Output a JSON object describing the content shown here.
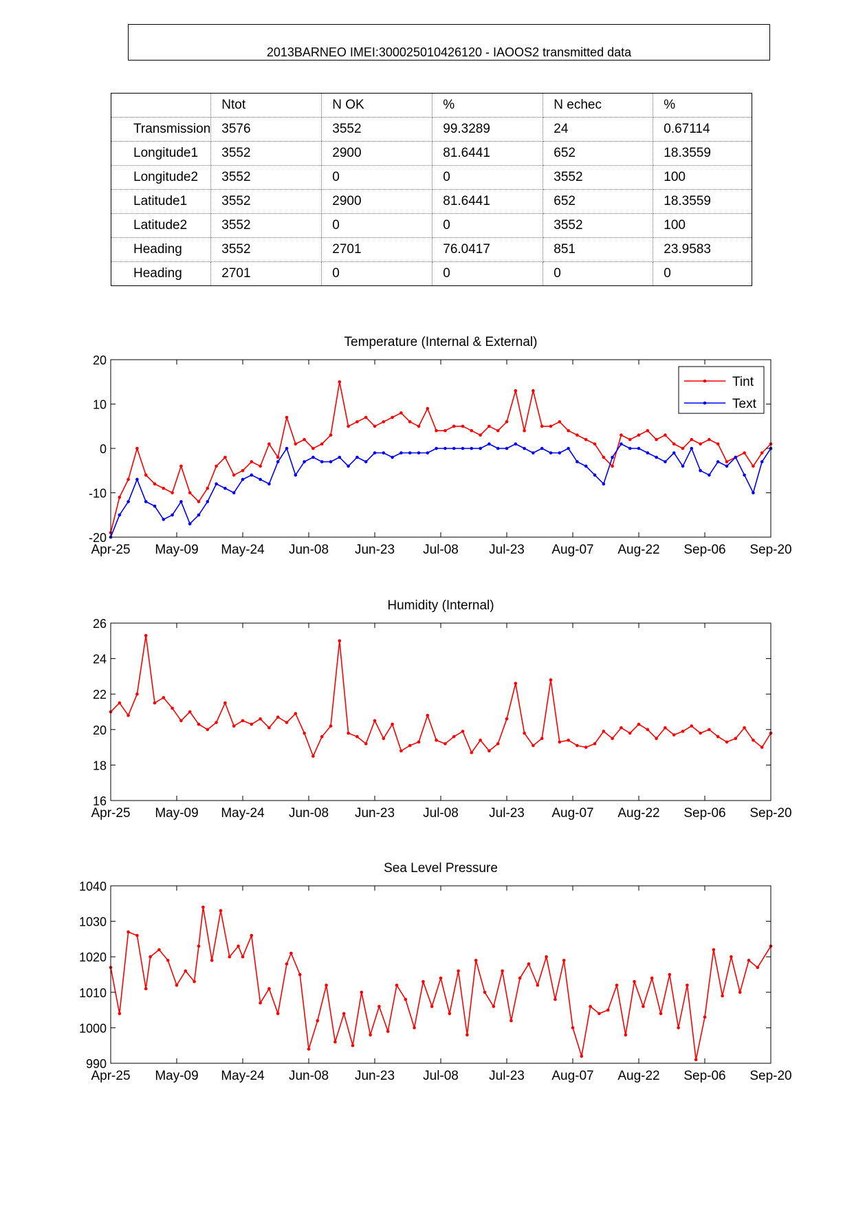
{
  "page_title": "2013BARNEO  IMEI:300025010426120  - IAOOS2 transmitted data",
  "table": {
    "headers": [
      "",
      "Ntot",
      "N OK",
      "%",
      "N echec",
      "%"
    ],
    "rows": [
      [
        "Transmission",
        "3576",
        "3552",
        "99.3289",
        "24",
        "0.67114"
      ],
      [
        "Longitude1",
        "3552",
        "2900",
        "81.6441",
        "652",
        "18.3559"
      ],
      [
        "Longitude2",
        "3552",
        "0",
        "0",
        "3552",
        "100"
      ],
      [
        "Latitude1",
        "3552",
        "2900",
        "81.6441",
        "652",
        "18.3559"
      ],
      [
        "Latitude2",
        "3552",
        "0",
        "0",
        "3552",
        "100"
      ],
      [
        "Heading",
        "3552",
        "2701",
        "76.0417",
        "851",
        "23.9583"
      ],
      [
        "Heading",
        "2701",
        "0",
        "0",
        "0",
        "0"
      ]
    ]
  },
  "colors": {
    "tint": "#ff0000",
    "text": "#0000ff",
    "axis": "#000000"
  },
  "chart_data": [
    {
      "type": "line",
      "title": "Temperature (Internal & External)",
      "xlabel": "",
      "ylabel": "",
      "x_tick_labels": [
        "Apr-25",
        "May-09",
        "May-24",
        "Jun-08",
        "Jun-23",
        "Jul-08",
        "Jul-23",
        "Aug-07",
        "Aug-22",
        "Sep-06",
        "Sep-20"
      ],
      "x_tick_days": [
        0,
        15,
        30,
        45,
        60,
        75,
        90,
        105,
        120,
        135,
        150
      ],
      "xlim": [
        0,
        150
      ],
      "ylim": [
        -20,
        20
      ],
      "y_ticks": [
        -20,
        -10,
        0,
        10,
        20
      ],
      "legend": {
        "position": "top-right",
        "entries": [
          "Tint",
          "Text"
        ]
      },
      "series": [
        {
          "name": "Tint",
          "color": "#ff0000",
          "x": [
            0,
            2,
            4,
            6,
            8,
            10,
            12,
            14,
            16,
            18,
            20,
            22,
            24,
            26,
            28,
            30,
            32,
            34,
            36,
            38,
            40,
            42,
            44,
            46,
            48,
            50,
            52,
            54,
            56,
            58,
            60,
            62,
            64,
            66,
            68,
            70,
            72,
            74,
            76,
            78,
            80,
            82,
            84,
            86,
            88,
            90,
            92,
            94,
            96,
            98,
            100,
            102,
            104,
            106,
            108,
            110,
            112,
            114,
            116,
            118,
            120,
            122,
            124,
            126,
            128,
            130,
            132,
            134,
            136,
            138,
            140,
            142,
            144,
            146,
            148,
            150
          ],
          "y": [
            -19,
            -11,
            -7,
            0,
            -6,
            -8,
            -9,
            -10,
            -4,
            -10,
            -12,
            -9,
            -4,
            -2,
            -6,
            -5,
            -3,
            -4,
            1,
            -2,
            7,
            1,
            2,
            0,
            1,
            3,
            15,
            5,
            6,
            7,
            5,
            6,
            7,
            8,
            6,
            5,
            9,
            4,
            4,
            5,
            5,
            4,
            3,
            5,
            4,
            6,
            13,
            4,
            13,
            5,
            5,
            6,
            4,
            3,
            2,
            1,
            -2,
            -4,
            3,
            2,
            3,
            4,
            2,
            3,
            1,
            0,
            2,
            1,
            2,
            1,
            -3,
            -2,
            -1,
            -4,
            -1,
            1
          ]
        },
        {
          "name": "Text",
          "color": "#0000ff",
          "x": [
            0,
            2,
            4,
            6,
            8,
            10,
            12,
            14,
            16,
            18,
            20,
            22,
            24,
            26,
            28,
            30,
            32,
            34,
            36,
            38,
            40,
            42,
            44,
            46,
            48,
            50,
            52,
            54,
            56,
            58,
            60,
            62,
            64,
            66,
            68,
            70,
            72,
            74,
            76,
            78,
            80,
            82,
            84,
            86,
            88,
            90,
            92,
            94,
            96,
            98,
            100,
            102,
            104,
            106,
            108,
            110,
            112,
            114,
            116,
            118,
            120,
            122,
            124,
            126,
            128,
            130,
            132,
            134,
            136,
            138,
            140,
            142,
            144,
            146,
            148,
            150
          ],
          "y": [
            -20,
            -15,
            -12,
            -7,
            -12,
            -13,
            -16,
            -15,
            -12,
            -17,
            -15,
            -12,
            -8,
            -9,
            -10,
            -7,
            -6,
            -7,
            -8,
            -3,
            0,
            -6,
            -3,
            -2,
            -3,
            -3,
            -2,
            -4,
            -2,
            -3,
            -1,
            -1,
            -2,
            -1,
            -1,
            -1,
            -1,
            0,
            0,
            0,
            0,
            0,
            0,
            1,
            0,
            0,
            1,
            0,
            -1,
            0,
            -1,
            -1,
            0,
            -3,
            -4,
            -6,
            -8,
            -2,
            1,
            0,
            0,
            -1,
            -2,
            -3,
            -1,
            -4,
            0,
            -5,
            -6,
            -3,
            -4,
            -2,
            -6,
            -10,
            -3,
            0
          ]
        }
      ]
    },
    {
      "type": "line",
      "title": "Humidity (Internal)",
      "xlabel": "",
      "ylabel": "",
      "x_tick_labels": [
        "Apr-25",
        "May-09",
        "May-24",
        "Jun-08",
        "Jun-23",
        "Jul-08",
        "Jul-23",
        "Aug-07",
        "Aug-22",
        "Sep-06",
        "Sep-20"
      ],
      "x_tick_days": [
        0,
        15,
        30,
        45,
        60,
        75,
        90,
        105,
        120,
        135,
        150
      ],
      "xlim": [
        0,
        150
      ],
      "ylim": [
        16,
        26
      ],
      "y_ticks": [
        16,
        18,
        20,
        22,
        24,
        26
      ],
      "series": [
        {
          "name": "Humidity",
          "color": "#ff0000",
          "x": [
            0,
            2,
            4,
            6,
            8,
            10,
            12,
            14,
            16,
            18,
            20,
            22,
            24,
            26,
            28,
            30,
            32,
            34,
            36,
            38,
            40,
            42,
            44,
            46,
            48,
            50,
            52,
            54,
            56,
            58,
            60,
            62,
            64,
            66,
            68,
            70,
            72,
            74,
            76,
            78,
            80,
            82,
            84,
            86,
            88,
            90,
            92,
            94,
            96,
            98,
            100,
            102,
            104,
            106,
            108,
            110,
            112,
            114,
            116,
            118,
            120,
            122,
            124,
            126,
            128,
            130,
            132,
            134,
            136,
            138,
            140,
            142,
            144,
            146,
            148,
            150
          ],
          "y": [
            21,
            21.5,
            20.8,
            22,
            25.3,
            21.5,
            21.8,
            21.2,
            20.5,
            21,
            20.3,
            20,
            20.4,
            21.5,
            20.2,
            20.5,
            20.3,
            20.6,
            20.1,
            20.7,
            20.4,
            20.9,
            19.8,
            18.5,
            19.6,
            20.2,
            25,
            19.8,
            19.6,
            19.2,
            20.5,
            19.5,
            20.3,
            18.8,
            19.1,
            19.3,
            20.8,
            19.4,
            19.2,
            19.6,
            19.9,
            18.7,
            19.4,
            18.8,
            19.2,
            20.6,
            22.6,
            19.8,
            19.1,
            19.5,
            22.8,
            19.3,
            19.4,
            19.1,
            19.0,
            19.2,
            19.9,
            19.5,
            20.1,
            19.8,
            20.3,
            20.0,
            19.5,
            20.1,
            19.7,
            19.9,
            20.2,
            19.8,
            20.0,
            19.6,
            19.3,
            19.5,
            20.1,
            19.4,
            19.0,
            19.8
          ]
        }
      ]
    },
    {
      "type": "line",
      "title": "Sea Level Pressure",
      "xlabel": "",
      "ylabel": "",
      "x_tick_labels": [
        "Apr-25",
        "May-09",
        "May-24",
        "Jun-08",
        "Jun-23",
        "Jul-08",
        "Jul-23",
        "Aug-07",
        "Aug-22",
        "Sep-06",
        "Sep-20"
      ],
      "x_tick_days": [
        0,
        15,
        30,
        45,
        60,
        75,
        90,
        105,
        120,
        135,
        150
      ],
      "xlim": [
        0,
        150
      ],
      "ylim": [
        990,
        1040
      ],
      "y_ticks": [
        990,
        1000,
        1010,
        1020,
        1030,
        1040
      ],
      "series": [
        {
          "name": "Pressure",
          "color": "#ff0000",
          "x": [
            0,
            2,
            4,
            6,
            8,
            9,
            11,
            13,
            15,
            17,
            19,
            20,
            21,
            23,
            25,
            27,
            29,
            30,
            32,
            34,
            36,
            38,
            40,
            41,
            43,
            45,
            47,
            49,
            51,
            53,
            55,
            57,
            59,
            61,
            63,
            65,
            67,
            69,
            71,
            73,
            75,
            77,
            79,
            81,
            83,
            85,
            87,
            89,
            91,
            93,
            95,
            97,
            99,
            101,
            103,
            105,
            107,
            109,
            111,
            113,
            115,
            117,
            119,
            121,
            123,
            125,
            127,
            129,
            131,
            133,
            135,
            137,
            139,
            141,
            143,
            145,
            147,
            150
          ],
          "y": [
            1017,
            1004,
            1027,
            1026,
            1011,
            1020,
            1022,
            1019,
            1012,
            1016,
            1013,
            1023,
            1034,
            1019,
            1033,
            1020,
            1023,
            1020,
            1026,
            1007,
            1011,
            1004,
            1018,
            1021,
            1015,
            994,
            1002,
            1012,
            996,
            1004,
            995,
            1010,
            998,
            1006,
            999,
            1012,
            1008,
            1000,
            1013,
            1006,
            1014,
            1004,
            1016,
            998,
            1019,
            1010,
            1006,
            1016,
            1002,
            1014,
            1018,
            1012,
            1020,
            1008,
            1019,
            1000,
            992,
            1006,
            1004,
            1005,
            1012,
            998,
            1013,
            1006,
            1014,
            1004,
            1015,
            1000,
            1012,
            991,
            1003,
            1022,
            1009,
            1020,
            1010,
            1019,
            1017,
            1023
          ]
        }
      ]
    }
  ]
}
